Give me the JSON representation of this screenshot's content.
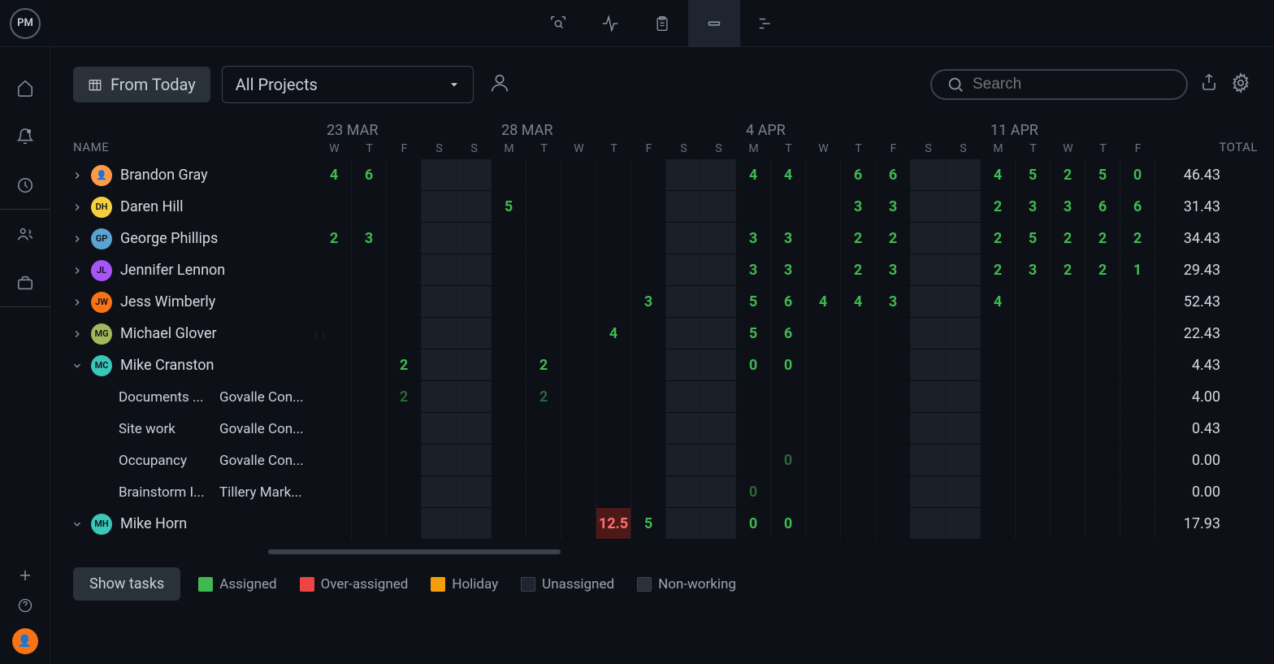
{
  "logo": "PM",
  "toolbar": {
    "from_today": "From Today",
    "project_filter": "All Projects",
    "search_placeholder": "Search"
  },
  "headers": {
    "name": "NAME",
    "total": "TOTAL"
  },
  "weeks": [
    {
      "label": "23 MAR",
      "days": [
        "W",
        "T",
        "F",
        "S",
        "S"
      ]
    },
    {
      "label": "28 MAR",
      "days": [
        "M",
        "T",
        "W",
        "T",
        "F",
        "S",
        "S"
      ]
    },
    {
      "label": "4 APR",
      "days": [
        "M",
        "T",
        "W",
        "T",
        "F",
        "S",
        "S"
      ]
    },
    {
      "label": "11 APR",
      "days": [
        "M",
        "T",
        "W",
        "T",
        "F"
      ]
    }
  ],
  "colors": {
    "assigned": "#3fb950",
    "over": "#ff7070",
    "over_bg": "#4d1818",
    "holiday": "#f59e0b",
    "unassigned": "#1e2530",
    "nonworking": "#2a3138",
    "bg": "#0d1117",
    "grid_line": "#161b22",
    "text": "#c9d1d9",
    "muted": "#7a8290"
  },
  "avatar_colors": {
    "brandon": "#ff9a4a",
    "daren": "#f4d03f",
    "george": "#5ba3d0",
    "jennifer": "#a855f7",
    "jess": "#f97316",
    "michael": "#a3b85a",
    "mikec": "#3bc6b8",
    "mikeh": "#3bc6b8"
  },
  "people": [
    {
      "id": "brandon",
      "name": "Brandon Gray",
      "initials": "👤",
      "expanded": false,
      "total": "46.43",
      "cells": [
        "4",
        "6",
        "",
        "",
        "",
        "",
        "",
        "",
        "",
        "",
        "",
        "",
        "4",
        "4",
        "",
        "6",
        "6",
        "",
        "",
        "4",
        "5",
        "2",
        "5",
        "0"
      ]
    },
    {
      "id": "daren",
      "name": "Daren Hill",
      "initials": "DH",
      "expanded": false,
      "total": "31.43",
      "cells": [
        "",
        "",
        "",
        "",
        "",
        "5",
        "",
        "",
        "",
        "",
        "",
        "",
        "",
        "",
        "",
        "3",
        "3",
        "",
        "",
        "2",
        "3",
        "3",
        "6",
        "6"
      ]
    },
    {
      "id": "george",
      "name": "George Phillips",
      "initials": "GP",
      "expanded": false,
      "total": "34.43",
      "cells": [
        "2",
        "3",
        "",
        "",
        "",
        "",
        "",
        "",
        "",
        "",
        "",
        "",
        "3",
        "3",
        "",
        "2",
        "2",
        "",
        "",
        "2",
        "5",
        "2",
        "2",
        "2"
      ]
    },
    {
      "id": "jennifer",
      "name": "Jennifer Lennon",
      "initials": "JL",
      "expanded": false,
      "total": "29.43",
      "cells": [
        "",
        "",
        "",
        "",
        "",
        "",
        "",
        "",
        "",
        "",
        "",
        "",
        "3",
        "3",
        "",
        "2",
        "3",
        "",
        "",
        "2",
        "3",
        "2",
        "2",
        "1"
      ]
    },
    {
      "id": "jess",
      "name": "Jess Wimberly",
      "initials": "JW",
      "expanded": false,
      "total": "52.43",
      "cells": [
        "",
        "",
        "",
        "",
        "",
        "",
        "",
        "",
        "",
        "3",
        "",
        "",
        "5",
        "6",
        "4",
        "4",
        "3",
        "",
        "",
        "4",
        "",
        "",
        "",
        ""
      ]
    },
    {
      "id": "michael",
      "name": "Michael Glover",
      "initials": "MG",
      "expanded": false,
      "total": "22.43",
      "cells": [
        "",
        "",
        "",
        "",
        "",
        "",
        "",
        "",
        "4",
        "",
        "",
        "",
        "5",
        "6",
        "",
        "",
        "",
        "",
        "",
        "",
        "",
        "",
        "",
        ""
      ]
    },
    {
      "id": "mikec",
      "name": "Mike Cranston",
      "initials": "MC",
      "expanded": true,
      "total": "4.43",
      "cells": [
        "",
        "",
        "2",
        "",
        "",
        "",
        "2",
        "",
        "",
        "",
        "",
        "",
        "0",
        "0",
        "",
        "",
        "",
        "",
        "",
        "",
        "",
        "",
        "",
        ""
      ]
    },
    {
      "id": "mikeh",
      "name": "Mike Horn",
      "initials": "MH",
      "expanded": true,
      "total": "17.93",
      "cells": [
        "",
        "",
        "",
        "",
        "",
        "",
        "",
        "",
        "12.5",
        "5",
        "",
        "",
        "0",
        "0",
        "",
        "",
        "",
        "",
        "",
        "",
        "",
        "",
        "",
        ""
      ],
      "flags": [
        "",
        "",
        "",
        "",
        "",
        "",
        "",
        "",
        "over",
        "",
        "",
        "",
        "",
        "",
        "",
        "",
        "",
        "",
        "",
        "",
        "",
        "",
        "",
        ""
      ]
    }
  ],
  "tasks_mikec": [
    {
      "name": "Documents ...",
      "project": "Govalle Con...",
      "total": "4.00",
      "cells": [
        "",
        "",
        "2",
        "",
        "",
        "",
        "2",
        "",
        "",
        "",
        "",
        "",
        "",
        "",
        "",
        "",
        "",
        "",
        "",
        "",
        "",
        "",
        "",
        ""
      ]
    },
    {
      "name": "Site work",
      "project": "Govalle Con...",
      "total": "0.43",
      "cells": [
        "",
        "",
        "",
        "",
        "",
        "",
        "",
        "",
        "",
        "",
        "",
        "",
        "",
        "",
        "",
        "",
        "",
        "",
        "",
        "",
        "",
        "",
        "",
        ""
      ]
    },
    {
      "name": "Occupancy",
      "project": "Govalle Con...",
      "total": "0.00",
      "cells": [
        "",
        "",
        "",
        "",
        "",
        "",
        "",
        "",
        "",
        "",
        "",
        "",
        "",
        "0",
        "",
        "",
        "",
        "",
        "",
        "",
        "",
        "",
        "",
        ""
      ]
    },
    {
      "name": "Brainstorm I...",
      "project": "Tillery Mark...",
      "total": "0.00",
      "cells": [
        "",
        "",
        "",
        "",
        "",
        "",
        "",
        "",
        "",
        "",
        "",
        "",
        "0",
        "",
        "",
        "",
        "",
        "",
        "",
        "",
        "",
        "",
        "",
        ""
      ]
    }
  ],
  "weekend_indices": [
    3,
    4,
    10,
    11,
    17,
    18
  ],
  "footer": {
    "show_tasks": "Show tasks"
  },
  "legend": [
    {
      "label": "Assigned",
      "color": "#3fb950"
    },
    {
      "label": "Over-assigned",
      "color": "#ef4444"
    },
    {
      "label": "Holiday",
      "color": "#f59e0b"
    },
    {
      "label": "Unassigned",
      "color": "#1e2530",
      "border": "#3a424d"
    },
    {
      "label": "Non-working",
      "color": "#2a3138",
      "border": "#3a424d"
    }
  ]
}
